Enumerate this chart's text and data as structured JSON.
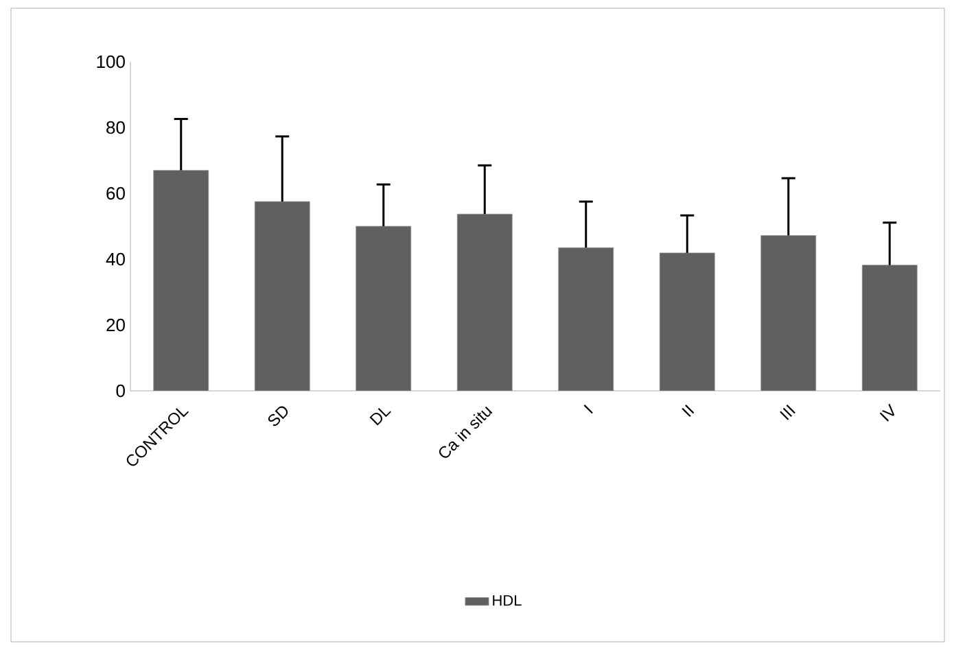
{
  "chart_data": {
    "type": "bar",
    "categories": [
      "CONTROL",
      "SD",
      "DL",
      "Ca in situ",
      "I",
      "II",
      "III",
      "IV"
    ],
    "series": [
      {
        "name": "HDL",
        "color": "#606060",
        "values": [
          67.0,
          57.5,
          50.0,
          53.7,
          43.5,
          41.9,
          47.2,
          38.2
        ],
        "errors": [
          [
            67.0,
            82.6
          ],
          [
            57.5,
            77.3
          ],
          [
            50.0,
            62.7
          ],
          [
            53.7,
            68.5
          ],
          [
            43.5,
            57.5
          ],
          [
            41.9,
            53.3
          ],
          [
            47.2,
            64.6
          ],
          [
            38.2,
            51.1
          ]
        ]
      }
    ],
    "ylim": [
      0,
      100
    ],
    "yticks": [
      0,
      20,
      40,
      60,
      80,
      100
    ],
    "grid": false,
    "legend": "bottom"
  }
}
